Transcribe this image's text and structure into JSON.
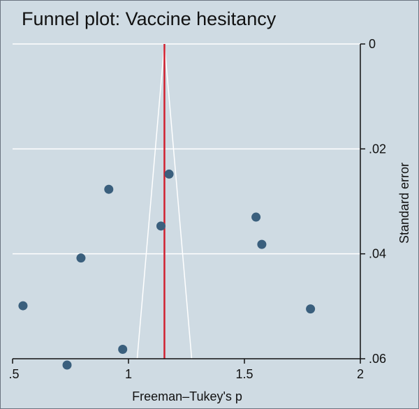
{
  "chart_data": {
    "type": "scatter",
    "title": "Funnel plot: Vaccine hesitancy",
    "xlabel": "Freeman–Tukey's p",
    "ylabel": "Standard error",
    "xlim": [
      0.5,
      2
    ],
    "ylim": [
      0,
      0.06
    ],
    "y_reversed": true,
    "y_axis_side": "right",
    "grid": true,
    "x_ticks": [
      {
        "value": 0.5,
        "label": ".5"
      },
      {
        "value": 1,
        "label": "1"
      },
      {
        "value": 1.5,
        "label": "1.5"
      },
      {
        "value": 2,
        "label": "2"
      }
    ],
    "y_ticks": [
      {
        "value": 0,
        "label": "0"
      },
      {
        "value": 0.02,
        "label": ".02"
      },
      {
        "value": 0.04,
        "label": ".04"
      },
      {
        "value": 0.06,
        "label": ".06"
      }
    ],
    "pooled_estimate": 1.155,
    "funnel_z": 1.96,
    "points": [
      {
        "x": 1.175,
        "y": 0.0248
      },
      {
        "x": 0.915,
        "y": 0.0277
      },
      {
        "x": 1.55,
        "y": 0.033
      },
      {
        "x": 1.14,
        "y": 0.0347
      },
      {
        "x": 1.575,
        "y": 0.0382
      },
      {
        "x": 0.795,
        "y": 0.0408
      },
      {
        "x": 0.545,
        "y": 0.0499
      },
      {
        "x": 1.785,
        "y": 0.0505
      },
      {
        "x": 0.975,
        "y": 0.0582
      },
      {
        "x": 0.735,
        "y": 0.0612
      }
    ],
    "colors": {
      "background": "#cfdbe3",
      "grid": "#ffffff",
      "point": "#3a5f7d",
      "pooled_line": "#d0202f",
      "funnel": "#ffffff"
    }
  }
}
